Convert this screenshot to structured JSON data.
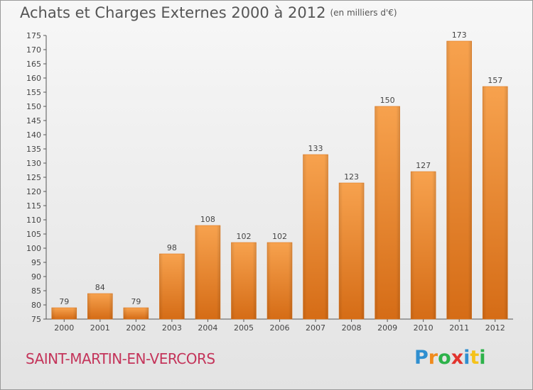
{
  "header": {
    "title": "Achats et Charges Externes 2000 à 2012",
    "subtitle": "(en milliers d'€)"
  },
  "footer": {
    "town": "SAINT-MARTIN-EN-VERCORS",
    "logo_letters": [
      "P",
      "r",
      "o",
      "x",
      "i",
      "t",
      "i"
    ],
    "logo_colors": [
      "#2f8fd0",
      "#f08a1c",
      "#2db24a",
      "#e2342e",
      "#2f8fd0",
      "#f5c21a",
      "#2db24a"
    ]
  },
  "chart_data": {
    "type": "bar",
    "categories": [
      "2000",
      "2001",
      "2002",
      "2003",
      "2004",
      "2005",
      "2006",
      "2007",
      "2008",
      "2009",
      "2010",
      "2011",
      "2012"
    ],
    "values": [
      79,
      84,
      79,
      98,
      108,
      102,
      102,
      133,
      123,
      150,
      127,
      173,
      157
    ],
    "title": "Achats et Charges Externes 2000 à 2012",
    "subtitle": "(en milliers d'€)",
    "xlabel": "",
    "ylabel": "",
    "ylim": [
      75,
      175
    ],
    "yticks": [
      75,
      80,
      85,
      90,
      95,
      100,
      105,
      110,
      115,
      120,
      125,
      130,
      135,
      140,
      145,
      150,
      155,
      160,
      165,
      170,
      175
    ],
    "grid": false,
    "bar_color": "#f0913a"
  }
}
